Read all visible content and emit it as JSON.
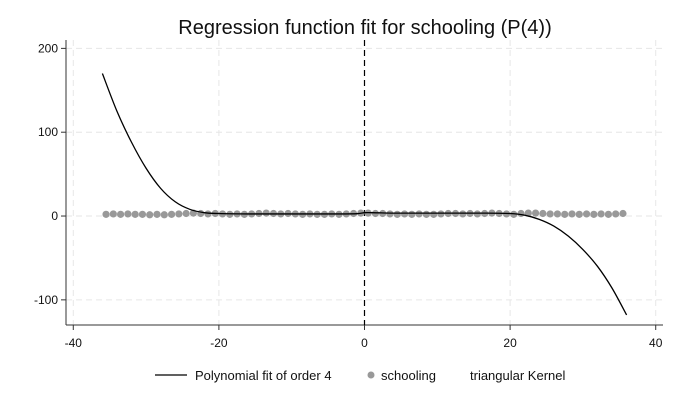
{
  "chart_data": {
    "type": "scatter",
    "title": "Regression function fit for schooling (P(4))",
    "xlabel": "",
    "ylabel": "",
    "xlim": [
      -41,
      41
    ],
    "ylim": [
      -130,
      210
    ],
    "x_ticks": [
      -40,
      -20,
      0,
      20,
      40
    ],
    "y_ticks": [
      -100,
      0,
      100,
      200
    ],
    "x_tick_labels": [
      "-40",
      "-20",
      "0",
      "20",
      "40"
    ],
    "y_tick_labels": [
      "-100",
      "0",
      "100",
      "200"
    ],
    "grid": true,
    "cutoff": 0,
    "legend_position": "bottom",
    "series": [
      {
        "name": "Polynomial fit of order 4",
        "kind": "line",
        "color": "#000000",
        "x": [
          -36,
          -34,
          -32,
          -30,
          -28,
          -26,
          -24,
          -22,
          -20,
          -16,
          -12,
          -8,
          -4,
          -1,
          0,
          1,
          4,
          8,
          12,
          16,
          20,
          22,
          24,
          26,
          28,
          30,
          32,
          34,
          36
        ],
        "y": [
          170,
          125,
          88,
          57,
          33,
          17,
          8,
          4,
          3,
          2.5,
          2.5,
          2.5,
          2.5,
          2.8,
          4,
          4,
          3.5,
          3.5,
          3.5,
          3.5,
          3,
          1,
          -4,
          -12,
          -24,
          -40,
          -60,
          -86,
          -118
        ]
      },
      {
        "name": "schooling",
        "kind": "scatter",
        "color": "#999999",
        "x": [
          -35.5,
          -34.5,
          -33.5,
          -32.5,
          -31.5,
          -30.5,
          -29.5,
          -28.5,
          -27.5,
          -26.5,
          -25.5,
          -24.5,
          -23.5,
          -22.5,
          -21.5,
          -20.5,
          -19.5,
          -18.5,
          -17.5,
          -16.5,
          -15.5,
          -14.5,
          -13.5,
          -12.5,
          -11.5,
          -10.5,
          -9.5,
          -8.5,
          -7.5,
          -6.5,
          -5.5,
          -4.5,
          -3.5,
          -2.5,
          -1.5,
          -0.5,
          0.5,
          1.5,
          2.5,
          3.5,
          4.5,
          5.5,
          6.5,
          7.5,
          8.5,
          9.5,
          10.5,
          11.5,
          12.5,
          13.5,
          14.5,
          15.5,
          16.5,
          17.5,
          18.5,
          19.5,
          20.5,
          21.5,
          22.5,
          23.5,
          24.5,
          25.5,
          26.5,
          27.5,
          28.5,
          29.5,
          30.5,
          31.5,
          32.5,
          33.5,
          34.5,
          35.5
        ],
        "y": [
          2,
          2.5,
          2,
          2.5,
          2,
          2,
          1.5,
          2,
          1.5,
          2,
          2.5,
          3,
          3.5,
          3,
          2.5,
          3,
          2.5,
          2,
          2.5,
          2,
          2.5,
          3,
          3.5,
          3,
          2.5,
          3,
          2.5,
          2,
          2.5,
          2,
          2,
          2.5,
          2,
          2.5,
          3,
          3.5,
          3.5,
          3,
          3,
          2.5,
          2,
          2.5,
          2,
          2.5,
          2,
          2,
          2.5,
          3,
          3,
          2.5,
          3,
          2.5,
          3,
          3.5,
          3,
          2.5,
          2,
          3,
          3.5,
          3.5,
          3,
          2.5,
          2.5,
          2,
          2.5,
          2,
          2.5,
          2,
          2.5,
          2,
          2.5,
          3
        ]
      }
    ],
    "legend": [
      "Polynomial fit of order 4",
      "schooling",
      "triangular Kernel"
    ]
  }
}
